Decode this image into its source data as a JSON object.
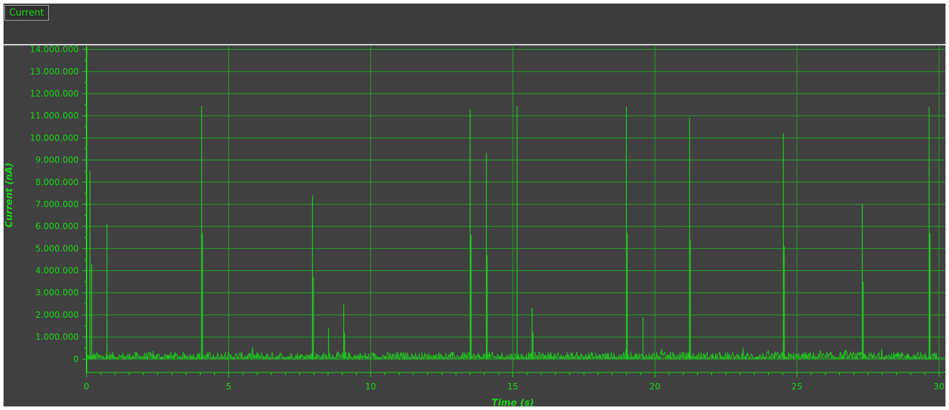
{
  "tab": {
    "label": "Current"
  },
  "colors": {
    "background": "#404040",
    "grid": "#1fa61f",
    "axis": "#19d619",
    "series": "#22c322",
    "text": "#19d619",
    "divider": "#d8d8d8"
  },
  "chart_data": {
    "type": "line",
    "title": "",
    "xlabel": "Time  (s)",
    "ylabel": "Current  (nA)",
    "xlim": [
      0,
      30
    ],
    "ylim": [
      -600000,
      14150000
    ],
    "x_ticks": [
      0,
      5,
      10,
      15,
      20,
      25,
      30
    ],
    "x_tick_labels": [
      "0",
      "5",
      "10",
      "15",
      "20",
      "25",
      "30"
    ],
    "y_ticks": [
      0,
      1000000,
      2000000,
      3000000,
      4000000,
      5000000,
      6000000,
      7000000,
      8000000,
      9000000,
      10000000,
      11000000,
      12000000,
      13000000,
      14000000
    ],
    "y_tick_labels": [
      "0",
      "1.000.000",
      "2.000.000",
      "3.000.000",
      "4.000.000",
      "5.000.000",
      "6.000.000",
      "7.000.000",
      "8.000.000",
      "9.000.000",
      "10.000.000",
      "11.000.000",
      "12.000.000",
      "13.000.000",
      "14.000.000"
    ],
    "grid": true,
    "baseline_noise": [
      0,
      450000
    ],
    "series": [
      {
        "name": "",
        "spikes": [
          {
            "x": 0.12,
            "y": 8500000
          },
          {
            "x": 0.18,
            "y": 4300000
          },
          {
            "x": 0.72,
            "y": 6100000
          },
          {
            "x": 4.05,
            "y": 11450000
          },
          {
            "x": 4.08,
            "y": 5700000
          },
          {
            "x": 7.95,
            "y": 7400000
          },
          {
            "x": 7.98,
            "y": 3700000
          },
          {
            "x": 8.52,
            "y": 1400000
          },
          {
            "x": 9.05,
            "y": 2500000
          },
          {
            "x": 9.08,
            "y": 1200000
          },
          {
            "x": 13.5,
            "y": 11300000
          },
          {
            "x": 13.53,
            "y": 5600000
          },
          {
            "x": 14.07,
            "y": 9300000
          },
          {
            "x": 14.1,
            "y": 4700000
          },
          {
            "x": 15.15,
            "y": 11450000
          },
          {
            "x": 15.68,
            "y": 2300000
          },
          {
            "x": 15.71,
            "y": 1200000
          },
          {
            "x": 19.0,
            "y": 11400000
          },
          {
            "x": 19.03,
            "y": 5700000
          },
          {
            "x": 19.58,
            "y": 1900000
          },
          {
            "x": 21.22,
            "y": 10900000
          },
          {
            "x": 21.25,
            "y": 5400000
          },
          {
            "x": 24.52,
            "y": 10200000
          },
          {
            "x": 24.55,
            "y": 5100000
          },
          {
            "x": 27.3,
            "y": 7000000
          },
          {
            "x": 27.33,
            "y": 3500000
          },
          {
            "x": 29.65,
            "y": 11400000
          },
          {
            "x": 29.68,
            "y": 5700000
          }
        ]
      }
    ]
  }
}
